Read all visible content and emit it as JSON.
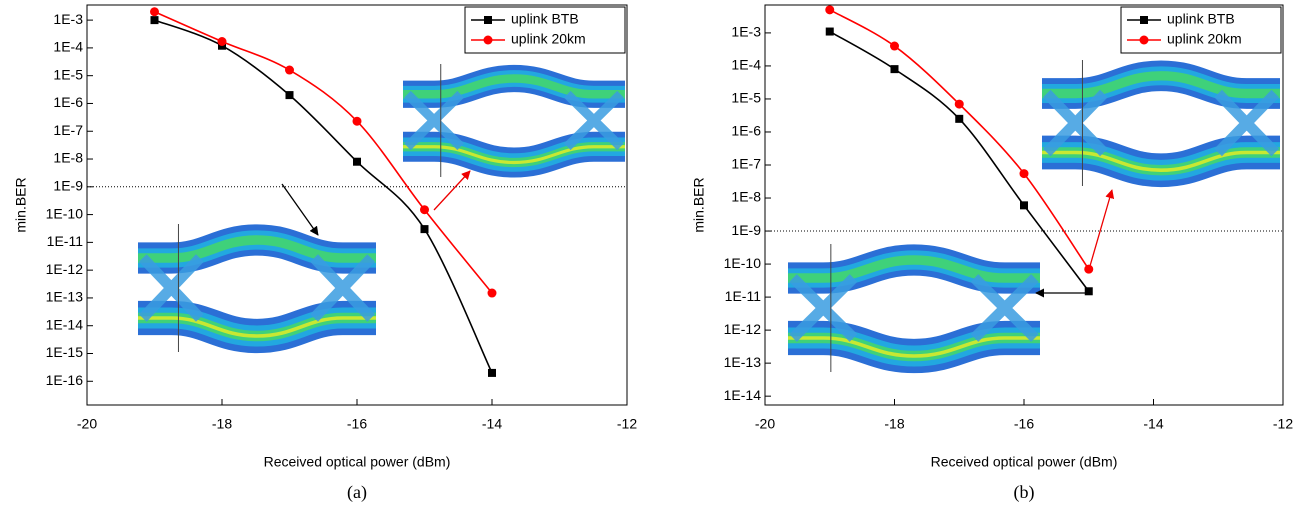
{
  "chart_data": [
    {
      "type": "line",
      "x_label": "Received optical power (dBm)",
      "y_label": "min.BER",
      "caption": "(a)",
      "log_y": true,
      "legend": "top right",
      "reference_line": 1e-09,
      "x": [
        -19,
        -18,
        -17,
        -16,
        -15,
        -14
      ],
      "series": [
        {
          "name": "uplink BTB",
          "color": "#000000",
          "marker": "square",
          "values": [
            0.001,
            0.00012,
            2e-06,
            8e-09,
            3e-11,
            2e-16
          ]
        },
        {
          "name": "uplink 20km",
          "color": "#ff0000",
          "marker": "circle",
          "values": [
            0.002,
            0.00017,
            1.6e-05,
            2.3e-07,
            1.5e-10,
            1.5e-13
          ]
        }
      ],
      "xlim": [
        -20,
        -12
      ],
      "xticks": [
        -20,
        -18,
        -16,
        -14,
        -12
      ],
      "ylim": [
        1.4e-17,
        0.0035
      ],
      "yticks": [
        {
          "value": 1e-16,
          "label": "1E-16"
        },
        {
          "value": 1e-15,
          "label": "1E-15"
        },
        {
          "value": 1e-14,
          "label": "1E-14"
        },
        {
          "value": 1e-13,
          "label": "1E-13"
        },
        {
          "value": 1e-12,
          "label": "1E-12"
        },
        {
          "value": 1e-11,
          "label": "1E-11"
        },
        {
          "value": 1e-10,
          "label": "1E-10"
        },
        {
          "value": 1e-09,
          "label": "1E-9"
        },
        {
          "value": 1e-08,
          "label": "1E-8"
        },
        {
          "value": 1e-07,
          "label": "1E-7"
        },
        {
          "value": 1e-06,
          "label": "1E-6"
        },
        {
          "value": 1e-05,
          "label": "1E-5"
        },
        {
          "value": 0.0001,
          "label": "1E-4"
        },
        {
          "value": 0.001,
          "label": "1E-3"
        }
      ]
    },
    {
      "type": "line",
      "x_label": "Received optical power (dBm)",
      "y_label": "min.BER",
      "caption": "(b)",
      "log_y": true,
      "legend": "top right",
      "reference_line": 1e-09,
      "x": [
        -19,
        -18,
        -17,
        -16,
        -15
      ],
      "series": [
        {
          "name": "uplink BTB",
          "color": "#000000",
          "marker": "square",
          "values": [
            0.0011,
            8e-05,
            2.5e-06,
            6e-09,
            1.5e-11
          ]
        },
        {
          "name": "uplink 20km",
          "color": "#ff0000",
          "marker": "circle",
          "values": [
            0.005,
            0.0004,
            7e-06,
            5.5e-08,
            7e-11
          ]
        }
      ],
      "xlim": [
        -20,
        -12
      ],
      "xticks": [
        -20,
        -18,
        -16,
        -14,
        -12
      ],
      "ylim": [
        5.4e-15,
        0.007
      ],
      "yticks": [
        {
          "value": 1e-14,
          "label": "1E-14"
        },
        {
          "value": 1e-13,
          "label": "1E-13"
        },
        {
          "value": 1e-12,
          "label": "1E-12"
        },
        {
          "value": 1e-11,
          "label": "1E-11"
        },
        {
          "value": 1e-10,
          "label": "1E-10"
        },
        {
          "value": 1e-09,
          "label": "1E-9"
        },
        {
          "value": 1e-08,
          "label": "1E-8"
        },
        {
          "value": 1e-07,
          "label": "1E-7"
        },
        {
          "value": 1e-06,
          "label": "1E-6"
        },
        {
          "value": 1e-05,
          "label": "1E-5"
        },
        {
          "value": 0.0001,
          "label": "1E-4"
        },
        {
          "value": 0.001,
          "label": "1E-3"
        }
      ]
    }
  ]
}
